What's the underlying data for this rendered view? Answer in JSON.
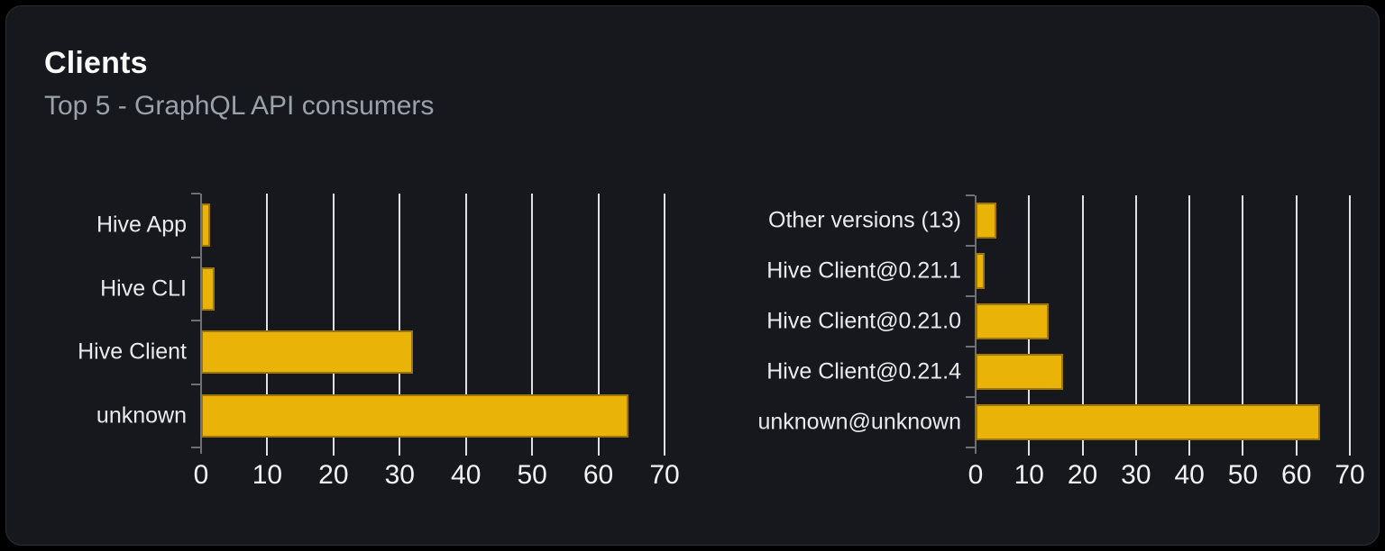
{
  "header": {
    "title": "Clients",
    "subtitle": "Top 5 - GraphQL API consumers"
  },
  "colors": {
    "page_bg": "#000000",
    "card_bg": "#16181D",
    "card_border": "#2B2E36",
    "title": "#FAFAFA",
    "subtitle": "#9BA1AB",
    "label": "#E8EAED",
    "bar": "#EAB308",
    "grid": "#DDE1E7",
    "axis": "#6D7076"
  },
  "chart_data": [
    {
      "type": "bar",
      "orientation": "horizontal",
      "name": "clients",
      "title": "",
      "categories": [
        "Hive App",
        "Hive CLI",
        "Hive Client",
        "unknown"
      ],
      "values": [
        1.3,
        2,
        32,
        64.6
      ],
      "x_ticks": [
        "0",
        "10",
        "20",
        "30",
        "40",
        "50",
        "60",
        "70"
      ],
      "xlim": [
        0,
        70
      ],
      "grid": true,
      "legend": false,
      "bar_color": "#EAB308"
    },
    {
      "type": "bar",
      "orientation": "horizontal",
      "name": "client-versions",
      "title": "",
      "categories": [
        "Other versions (13)",
        "Hive Client@0.21.1",
        "Hive Client@0.21.0",
        "Hive Client@0.21.4",
        "unknown@unknown"
      ],
      "values": [
        3.8,
        1.7,
        13.7,
        16.4,
        64.4
      ],
      "x_ticks": [
        "0",
        "10",
        "20",
        "30",
        "40",
        "50",
        "60",
        "70"
      ],
      "xlim": [
        0,
        70
      ],
      "grid": true,
      "legend": false,
      "bar_color": "#EAB308"
    }
  ]
}
